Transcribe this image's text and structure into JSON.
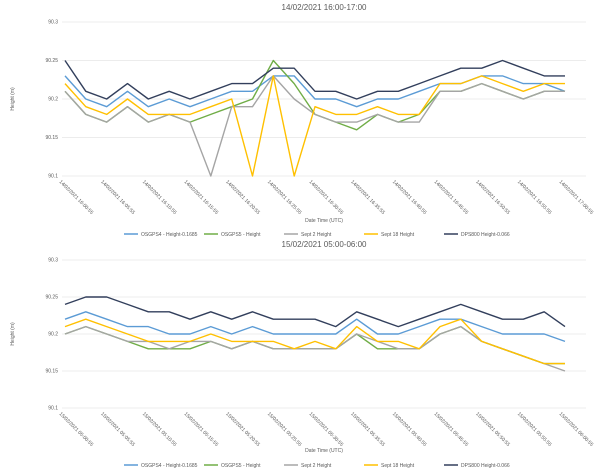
{
  "chart_data": [
    {
      "type": "line",
      "title": "14/02/2021 16:00-17:00",
      "y_label": "Height (m)",
      "x_label": "Date Time (UTC)",
      "categories": [
        "14/02/2021 16:00:55",
        null,
        "14/02/2021 16:05:55",
        null,
        "14/02/2021 16:10:55",
        null,
        "14/02/2021 16:15:55",
        null,
        "14/02/2021 16:20:55",
        null,
        "14/02/2021 16:25:55",
        null,
        "14/02/2021 16:30:55",
        null,
        "14/02/2021 16:35:55",
        null,
        "14/02/2021 16:40:55",
        null,
        "14/02/2021 16:45:55",
        null,
        "14/02/2021 16:50:55",
        null,
        "14/02/2021 16:55:55",
        null,
        "14/02/2021 17:00:55"
      ],
      "ylim": [
        90.1,
        90.3
      ],
      "yticks": [
        90.1,
        90.15,
        90.2,
        90.25,
        90.3
      ],
      "grid": true,
      "series": [
        {
          "name": "OSGPS4 - Height-0.1685",
          "color": "#5b9bd5",
          "values": [
            90.23,
            90.2,
            90.19,
            90.21,
            90.19,
            90.2,
            90.19,
            90.2,
            90.21,
            90.21,
            90.23,
            90.23,
            90.2,
            90.2,
            90.19,
            90.2,
            90.2,
            90.21,
            90.22,
            90.22,
            90.23,
            90.23,
            90.22,
            90.22,
            90.21
          ]
        },
        {
          "name": "OSGPS5 - Height",
          "color": "#70ad47",
          "values": [
            90.21,
            90.18,
            90.17,
            90.19,
            90.17,
            90.18,
            90.17,
            90.18,
            90.19,
            90.2,
            90.25,
            90.22,
            90.18,
            90.17,
            90.16,
            90.18,
            90.17,
            90.18,
            90.21,
            90.21,
            90.22,
            90.21,
            90.2,
            90.21,
            90.21
          ]
        },
        {
          "name": "Sept 2 Height",
          "color": "#a5a5a5",
          "values": [
            90.21,
            90.18,
            90.17,
            90.19,
            90.17,
            90.18,
            90.17,
            90.1,
            90.19,
            90.19,
            90.23,
            90.2,
            90.18,
            90.17,
            90.17,
            90.18,
            90.17,
            90.17,
            90.21,
            90.21,
            90.22,
            90.21,
            90.2,
            90.21,
            90.21
          ]
        },
        {
          "name": "Sept 18 Height",
          "color": "#ffc000",
          "values": [
            90.22,
            90.19,
            90.18,
            90.2,
            90.18,
            90.18,
            90.18,
            90.19,
            90.2,
            90.1,
            90.23,
            90.1,
            90.19,
            90.18,
            90.18,
            90.19,
            90.18,
            90.18,
            90.22,
            90.22,
            90.23,
            90.22,
            90.21,
            90.22,
            90.22
          ]
        },
        {
          "name": "DPS800 Height-0.066",
          "color": "#323f5c",
          "values": [
            90.25,
            90.21,
            90.2,
            90.22,
            90.2,
            90.21,
            90.2,
            90.21,
            90.22,
            90.22,
            90.24,
            90.24,
            90.21,
            90.21,
            90.2,
            90.21,
            90.21,
            90.22,
            90.23,
            90.24,
            90.24,
            90.25,
            90.24,
            90.23,
            90.23
          ]
        }
      ]
    },
    {
      "type": "line",
      "title": "15/02/2021 05:00-06:00",
      "y_label": "Height (m)",
      "x_label": "Date Time (UTC)",
      "categories": [
        "15/02/2021 05:00:55",
        null,
        "15/02/2021 05:05:55",
        null,
        "15/02/2021 05:10:55",
        null,
        "15/02/2021 05:15:55",
        null,
        "15/02/2021 05:20:55",
        null,
        "15/02/2021 05:25:55",
        null,
        "15/02/2021 05:30:55",
        null,
        "15/02/2021 05:35:55",
        null,
        "15/02/2021 05:40:55",
        null,
        "15/02/2021 05:45:55",
        null,
        "15/02/2021 05:50:55",
        null,
        "15/02/2021 05:55:55",
        null,
        "15/02/2021 06:00:55"
      ],
      "ylim": [
        90.1,
        90.3
      ],
      "yticks": [
        90.1,
        90.15,
        90.2,
        90.25,
        90.3
      ],
      "grid": true,
      "series": [
        {
          "name": "OSGPS4 - Height-0.1685",
          "color": "#5b9bd5",
          "values": [
            90.22,
            90.23,
            90.22,
            90.21,
            90.21,
            90.2,
            90.2,
            90.21,
            90.2,
            90.21,
            90.2,
            90.2,
            90.2,
            90.2,
            90.22,
            90.2,
            90.2,
            90.21,
            90.22,
            90.22,
            90.21,
            90.2,
            90.2,
            90.2,
            90.19
          ]
        },
        {
          "name": "OSGPS5 - Height",
          "color": "#70ad47",
          "values": [
            90.2,
            90.21,
            90.2,
            90.19,
            90.18,
            90.18,
            90.18,
            90.19,
            90.18,
            90.19,
            90.18,
            90.18,
            90.18,
            90.18,
            90.2,
            90.18,
            90.18,
            90.18,
            90.2,
            90.21,
            90.19,
            90.18,
            90.17,
            90.16,
            90.16
          ]
        },
        {
          "name": "Sept 2 Height",
          "color": "#a5a5a5",
          "values": [
            90.2,
            90.21,
            90.2,
            90.19,
            90.19,
            90.18,
            90.19,
            90.19,
            90.18,
            90.19,
            90.18,
            90.18,
            90.18,
            90.18,
            90.2,
            90.19,
            90.18,
            90.18,
            90.2,
            90.21,
            90.19,
            90.18,
            90.17,
            90.16,
            90.15
          ]
        },
        {
          "name": "Sept 18 Height",
          "color": "#ffc000",
          "values": [
            90.21,
            90.22,
            90.21,
            90.2,
            90.19,
            90.19,
            90.19,
            90.2,
            90.19,
            90.19,
            90.19,
            90.18,
            90.19,
            90.18,
            90.21,
            90.19,
            90.19,
            90.18,
            90.21,
            90.22,
            90.19,
            90.18,
            90.17,
            90.16,
            90.16
          ]
        },
        {
          "name": "DPS800 Height-0.066",
          "color": "#323f5c",
          "values": [
            90.24,
            90.25,
            90.25,
            90.24,
            90.23,
            90.23,
            90.22,
            90.23,
            90.22,
            90.23,
            90.22,
            90.22,
            90.22,
            90.21,
            90.23,
            90.22,
            90.21,
            90.22,
            90.23,
            90.24,
            90.23,
            90.22,
            90.22,
            90.23,
            90.21
          ]
        }
      ]
    }
  ]
}
